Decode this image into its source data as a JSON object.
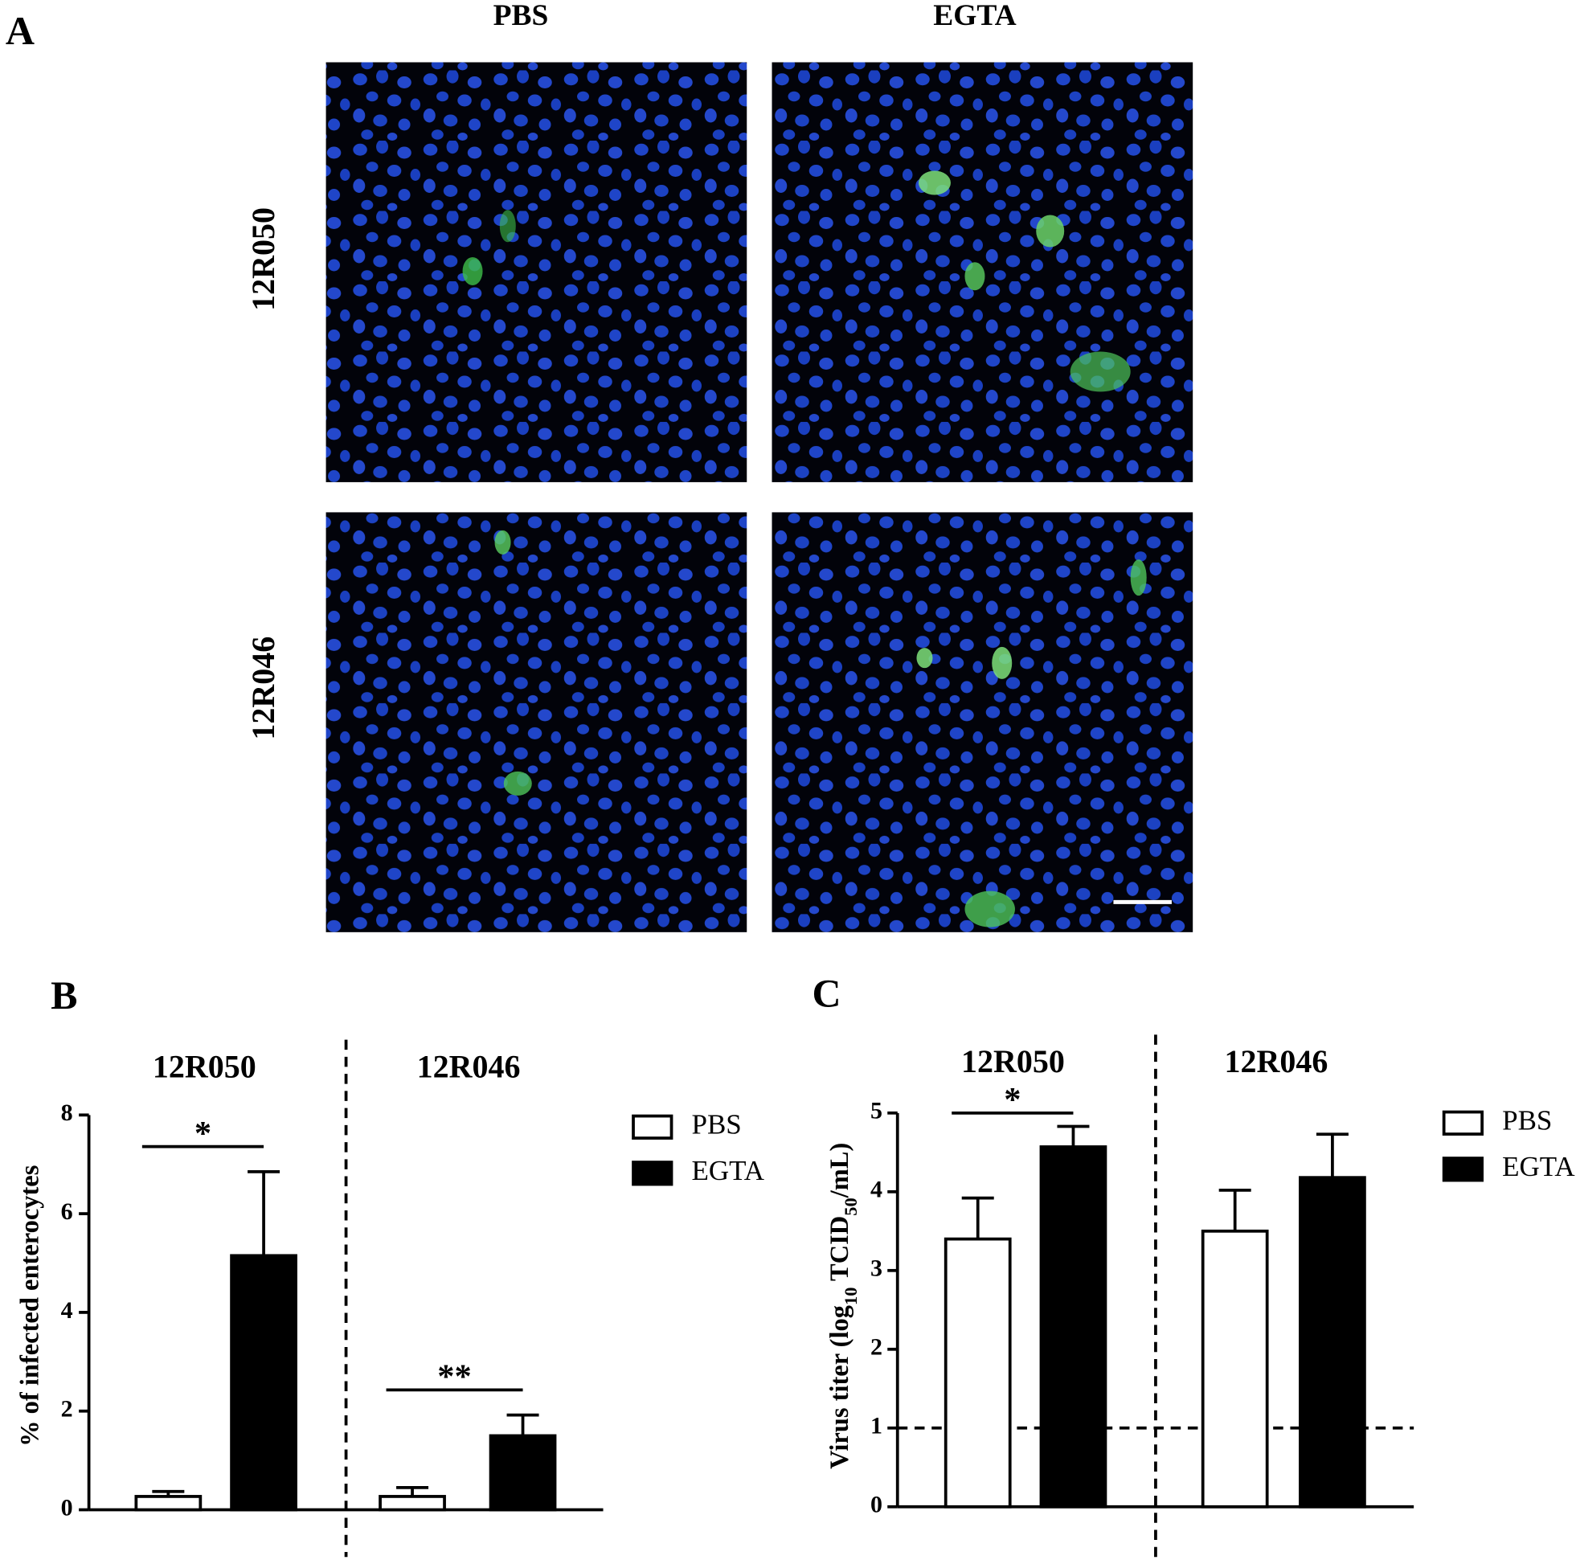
{
  "panel_a": {
    "label": "A",
    "columns": [
      "PBS",
      "EGTA"
    ],
    "rows": [
      "12R050",
      "12R046"
    ]
  },
  "chart_data": [
    {
      "type": "bar",
      "panel_label": "B",
      "ylabel": [
        "% of infected enterocytes"
      ],
      "categories": [
        "12R050",
        "12R046"
      ],
      "series": [
        {
          "name": "PBS",
          "color": "#ffffff",
          "values": [
            0.27,
            0.27
          ],
          "errors": [
            0.1,
            0.18
          ]
        },
        {
          "name": "EGTA",
          "color": "#000000",
          "values": [
            5.15,
            1.5
          ],
          "errors": [
            1.7,
            0.42
          ]
        }
      ],
      "annotations": [
        "*",
        "**"
      ],
      "ylim": [
        0,
        8
      ],
      "yticks": [
        0,
        2,
        4,
        6,
        8
      ]
    },
    {
      "type": "bar",
      "panel_label": "C",
      "ylabel": [
        "Virus titer (log",
        "10",
        " TCID",
        "50",
        "/mL)"
      ],
      "categories": [
        "12R050",
        "12R046"
      ],
      "series": [
        {
          "name": "PBS",
          "color": "#ffffff",
          "values": [
            3.4,
            3.5
          ],
          "errors": [
            0.52,
            0.52
          ]
        },
        {
          "name": "EGTA",
          "color": "#000000",
          "values": [
            4.57,
            4.18
          ],
          "errors": [
            0.26,
            0.55
          ]
        }
      ],
      "annotations": [
        "*",
        null
      ],
      "hline": 1,
      "ylim": [
        0,
        5
      ],
      "yticks": [
        0,
        1,
        2,
        3,
        4,
        5
      ]
    }
  ]
}
